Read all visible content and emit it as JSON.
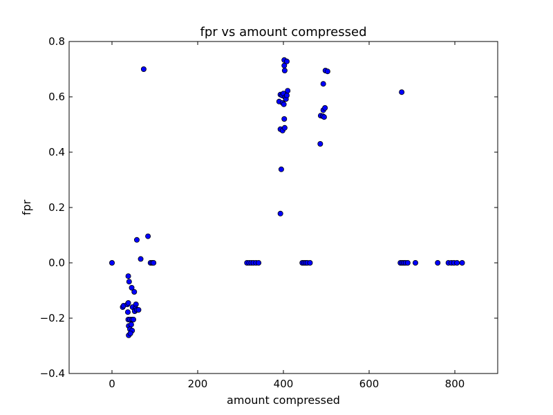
{
  "chart_data": {
    "type": "scatter",
    "title": "fpr vs amount compressed",
    "xlabel": "amount compressed",
    "ylabel": "fpr",
    "xlim": [
      -100,
      900
    ],
    "ylim": [
      -0.4,
      0.8
    ],
    "xticks": [
      0,
      200,
      400,
      600,
      800
    ],
    "xtick_labels": [
      "0",
      "200",
      "400",
      "600",
      "800"
    ],
    "yticks": [
      -0.4,
      -0.2,
      0.0,
      0.2,
      0.4,
      0.6,
      0.8
    ],
    "ytick_labels": [
      "−0.4",
      "−0.2",
      "0.0",
      "0.2",
      "0.4",
      "0.6",
      "0.8"
    ],
    "grid": false,
    "marker_color": "#0000ff",
    "marker_edge_color": "#000000",
    "points": [
      [
        0,
        0.0
      ],
      [
        74,
        0.7
      ],
      [
        84,
        0.096
      ],
      [
        58,
        0.083
      ],
      [
        67,
        0.014
      ],
      [
        90,
        0.0
      ],
      [
        94,
        0.0
      ],
      [
        97,
        0.0
      ],
      [
        25,
        -0.16
      ],
      [
        27,
        -0.155
      ],
      [
        38,
        -0.048
      ],
      [
        40,
        -0.068
      ],
      [
        36,
        -0.15
      ],
      [
        38,
        -0.145
      ],
      [
        37,
        -0.178
      ],
      [
        38,
        -0.205
      ],
      [
        42,
        -0.205
      ],
      [
        47,
        -0.205
      ],
      [
        50,
        -0.205
      ],
      [
        39,
        -0.228
      ],
      [
        45,
        -0.223
      ],
      [
        42,
        -0.24
      ],
      [
        47,
        -0.245
      ],
      [
        39,
        -0.262
      ],
      [
        43,
        -0.255
      ],
      [
        46,
        -0.09
      ],
      [
        52,
        -0.105
      ],
      [
        48,
        -0.16
      ],
      [
        56,
        -0.15
      ],
      [
        55,
        -0.165
      ],
      [
        53,
        -0.175
      ],
      [
        58,
        -0.17
      ],
      [
        62,
        -0.17
      ],
      [
        315,
        0.0
      ],
      [
        320,
        0.0
      ],
      [
        325,
        0.0
      ],
      [
        330,
        0.0
      ],
      [
        336,
        0.0
      ],
      [
        342,
        0.0
      ],
      [
        393,
        0.178
      ],
      [
        395,
        0.338
      ],
      [
        393,
        0.483
      ],
      [
        398,
        0.478
      ],
      [
        403,
        0.488
      ],
      [
        402,
        0.52
      ],
      [
        390,
        0.583
      ],
      [
        398,
        0.578
      ],
      [
        401,
        0.573
      ],
      [
        393,
        0.608
      ],
      [
        397,
        0.605
      ],
      [
        400,
        0.612
      ],
      [
        404,
        0.598
      ],
      [
        406,
        0.592
      ],
      [
        408,
        0.605
      ],
      [
        410,
        0.622
      ],
      [
        402,
        0.733
      ],
      [
        408,
        0.728
      ],
      [
        402,
        0.713
      ],
      [
        403,
        0.695
      ],
      [
        444,
        0.0
      ],
      [
        448,
        0.0
      ],
      [
        452,
        0.0
      ],
      [
        456,
        0.0
      ],
      [
        462,
        0.0
      ],
      [
        486,
        0.43
      ],
      [
        487,
        0.532
      ],
      [
        492,
        0.53
      ],
      [
        495,
        0.527
      ],
      [
        493,
        0.552
      ],
      [
        497,
        0.56
      ],
      [
        493,
        0.647
      ],
      [
        498,
        0.695
      ],
      [
        503,
        0.692
      ],
      [
        676,
        0.617
      ],
      [
        673,
        0.0
      ],
      [
        677,
        0.0
      ],
      [
        681,
        0.0
      ],
      [
        685,
        0.0
      ],
      [
        690,
        0.0
      ],
      [
        708,
        0.0
      ],
      [
        760,
        0.0
      ],
      [
        785,
        0.0
      ],
      [
        792,
        0.0
      ],
      [
        798,
        0.0
      ],
      [
        805,
        0.0
      ],
      [
        817,
        0.0
      ]
    ]
  }
}
